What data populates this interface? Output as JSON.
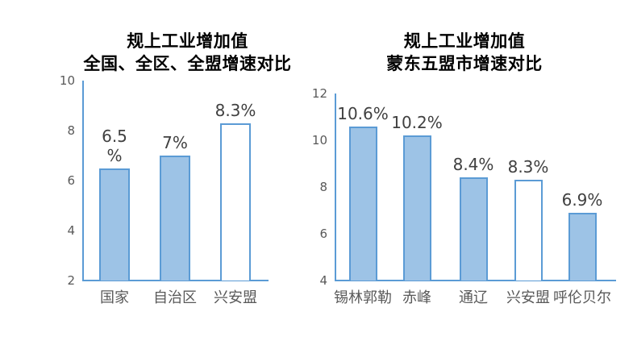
{
  "page": {
    "background": "#ffffff"
  },
  "colors": {
    "bar_fill": "#9DC3E6",
    "bar_border": "#5B9BD5",
    "axis_line": "#5B9BD5",
    "tick_text": "#595959",
    "category_text": "#595959",
    "data_label_text": "#404040",
    "title_text": "#000000"
  },
  "chart_data": [
    {
      "type": "bar",
      "title": "规上工业增加值 全国、全区、全盟增速对比",
      "title_lines": [
        "规上工业增加值",
        "全国、全区、全盟增速对比"
      ],
      "categories": [
        "国家",
        "自治区",
        "兴安盟"
      ],
      "values": [
        6.5,
        7,
        8.3
      ],
      "value_labels": [
        "6.5\n%",
        "7%",
        "8.3%"
      ],
      "bar_styles": [
        "filled",
        "filled",
        "outline"
      ],
      "ylim": [
        2,
        10
      ],
      "yticks": [
        2,
        4,
        6,
        8,
        10
      ],
      "grid": false,
      "legend": null,
      "xlabel": "",
      "ylabel": ""
    },
    {
      "type": "bar",
      "title": "规上工业增加值 蒙东五盟市增速对比",
      "title_lines": [
        "规上工业增加值",
        "蒙东五盟市增速对比"
      ],
      "categories": [
        "锡林郭勒",
        "赤峰",
        "通辽",
        "兴安盟",
        "呼伦贝尔"
      ],
      "values": [
        10.6,
        10.2,
        8.4,
        8.3,
        6.9
      ],
      "value_labels": [
        "10.6%",
        "10.2%",
        "8.4%",
        "8.3%",
        "6.9%"
      ],
      "bar_styles": [
        "filled",
        "filled",
        "filled",
        "outline",
        "filled"
      ],
      "ylim": [
        4,
        12
      ],
      "yticks": [
        4,
        6,
        8,
        10,
        12
      ],
      "grid": false,
      "legend": null,
      "xlabel": "",
      "ylabel": ""
    }
  ]
}
